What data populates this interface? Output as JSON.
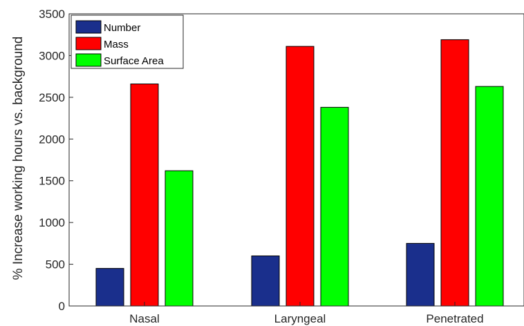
{
  "chart_data": {
    "type": "bar",
    "categories": [
      "Nasal",
      "Laryngeal",
      "Penetrated"
    ],
    "series": [
      {
        "name": "Number",
        "color": "#1a2f8c",
        "values": [
          450,
          600,
          750
        ]
      },
      {
        "name": "Mass",
        "color": "#ff0000",
        "values": [
          2660,
          3110,
          3190
        ]
      },
      {
        "name": "Surface Area",
        "color": "#00ff00",
        "values": [
          1620,
          2380,
          2630
        ]
      }
    ],
    "title": "",
    "xlabel": "",
    "ylabel": "% Increase working hours vs. background",
    "ylim": [
      0,
      3500
    ],
    "yticks": [
      "0",
      "500",
      "1000",
      "1500",
      "2000",
      "2500",
      "3000",
      "3500"
    ],
    "grid": false,
    "legend_position": "top-left"
  }
}
